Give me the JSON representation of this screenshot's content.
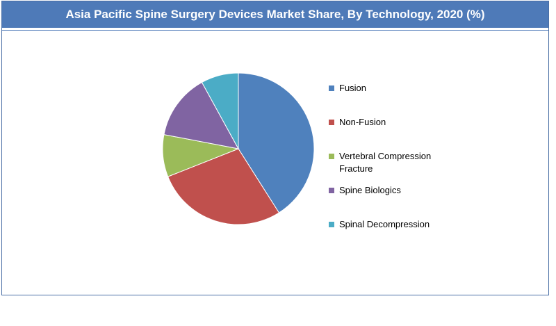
{
  "chart_data": {
    "type": "pie",
    "title": "Asia Pacific Spine Surgery Devices Market Share, By Technology, 2020 (%)",
    "slices": [
      {
        "label": "Fusion",
        "value": 41,
        "color": "#4f81bd"
      },
      {
        "label": "Non-Fusion",
        "value": 28,
        "color": "#c0504d"
      },
      {
        "label": "Vertebral Compression Fracture",
        "label_lines": [
          "Vertebral Compression",
          "Fracture"
        ],
        "value": 9,
        "color": "#9bbb59"
      },
      {
        "label": "Spine Biologics",
        "value": 14,
        "color": "#8064a2"
      },
      {
        "label": "Spinal Decompression",
        "value": 8,
        "color": "#4bacc6"
      }
    ],
    "legend_position": "right"
  }
}
